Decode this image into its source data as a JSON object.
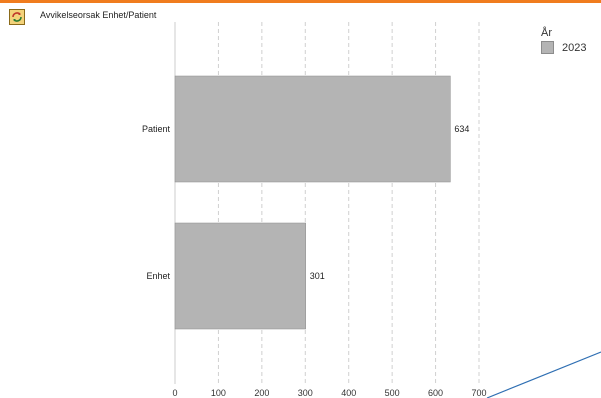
{
  "title": "Avvikelseorsak Enhet/Patient",
  "icons": {
    "app": "sync-doc-icon"
  },
  "colors": {
    "top_bar": "#f07c1e",
    "bar": "#b4b4b4",
    "bar_edge": "#8c8c8c",
    "grid": "#d0d0d0",
    "axis": "#cccccc",
    "overlay_line": "#2f6fb3"
  },
  "legend": {
    "title": "År"
  },
  "chart_data": {
    "type": "bar",
    "orientation": "horizontal",
    "categories": [
      "Patient",
      "Enhet"
    ],
    "series": [
      {
        "name": "2023",
        "values": [
          634,
          301
        ]
      }
    ],
    "xlim": [
      0,
      700
    ],
    "xticks": [
      0,
      100,
      200,
      300,
      400,
      500,
      600,
      700
    ],
    "grid": true,
    "data_labels": true,
    "legend_position": "top-right",
    "title": "Avvikelseorsak Enhet/Patient",
    "xlabel": "",
    "ylabel": ""
  }
}
